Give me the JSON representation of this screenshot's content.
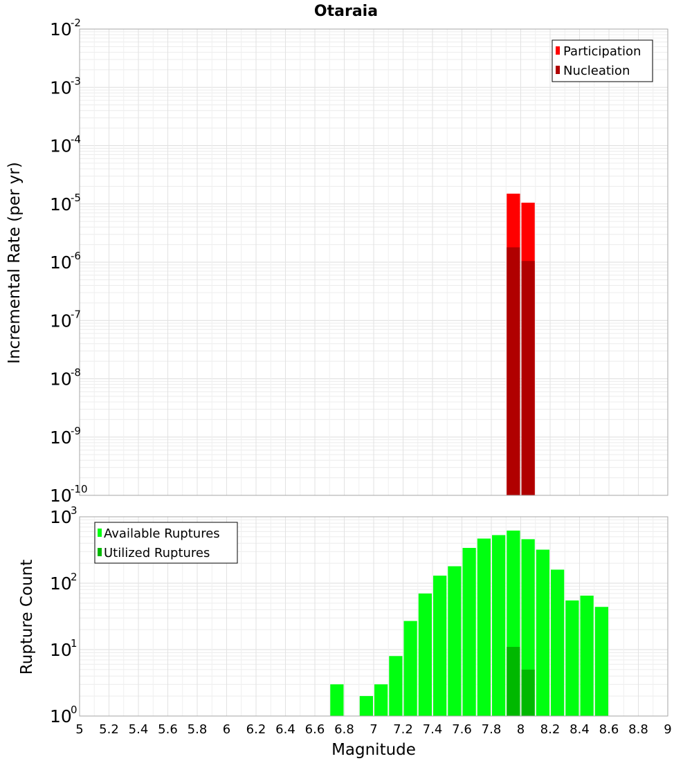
{
  "chart_data": {
    "title": "Otaraia",
    "xlabel": "Magnitude",
    "x_ticks": [
      "5",
      "5.2",
      "5.4",
      "5.6",
      "5.8",
      "6",
      "6.2",
      "6.4",
      "6.6",
      "6.8",
      "7",
      "7.2",
      "7.4",
      "7.6",
      "7.8",
      "8",
      "8.2",
      "8.4",
      "8.6",
      "8.8",
      "9"
    ],
    "xlim": [
      5,
      9
    ],
    "grid": true,
    "panels": [
      {
        "type": "bar",
        "ylabel": "Incremental Rate (per yr)",
        "yscale": "log",
        "ylim_exponents": [
          -10,
          -2
        ],
        "legend_position": "top-right",
        "series": [
          {
            "name": "Participation",
            "color": "#ff0000",
            "x": [
              7.95,
              8.05
            ],
            "values": [
              1.5e-05,
              1.05e-05
            ]
          },
          {
            "name": "Nucleation",
            "color": "#b00000",
            "x": [
              7.95,
              8.05
            ],
            "values": [
              1.8e-06,
              1.05e-06
            ]
          }
        ]
      },
      {
        "type": "bar",
        "ylabel": "Rupture Count",
        "yscale": "log",
        "ylim_exponents": [
          0,
          3
        ],
        "legend_position": "top-left",
        "series": [
          {
            "name": "Available Ruptures",
            "color": "#00ff10",
            "x": [
              6.75,
              6.95,
              7.05,
              7.15,
              7.25,
              7.35,
              7.45,
              7.55,
              7.65,
              7.75,
              7.85,
              7.95,
              8.05,
              8.15,
              8.25,
              8.35,
              8.45,
              8.55
            ],
            "values": [
              3,
              2,
              3,
              8,
              27,
              70,
              130,
              180,
              340,
              470,
              530,
              620,
              460,
              320,
              160,
              55,
              65,
              44
            ]
          },
          {
            "name": "Utilized Ruptures",
            "color": "#00b800",
            "x": [
              7.95,
              8.05
            ],
            "values": [
              11,
              5
            ]
          }
        ]
      }
    ]
  }
}
